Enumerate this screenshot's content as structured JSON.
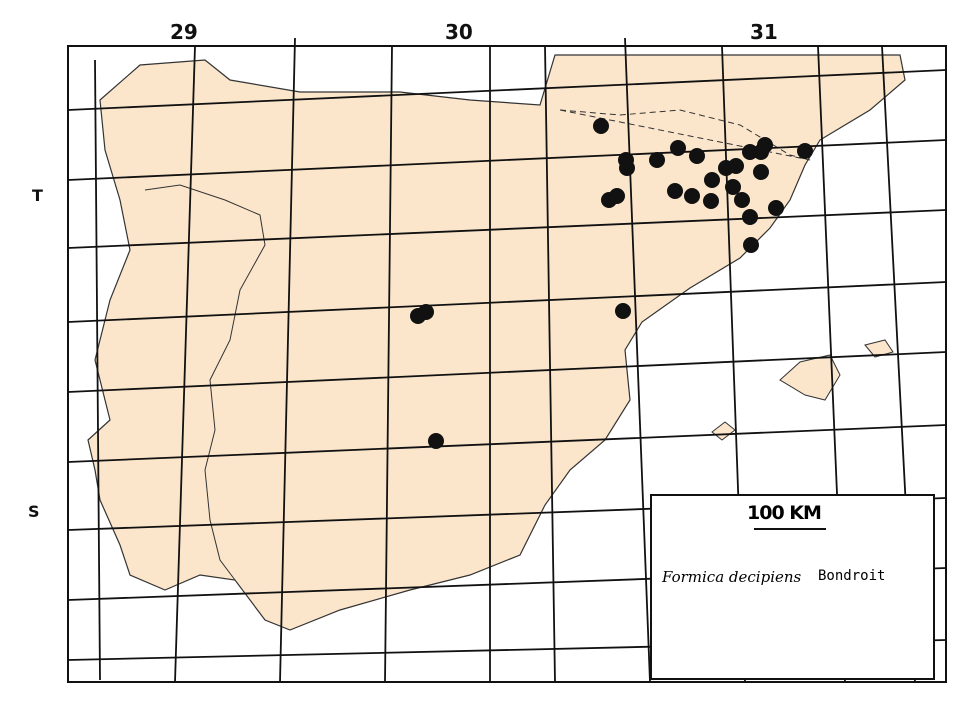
{
  "map": {
    "top_labels": [
      "29",
      "30",
      "31"
    ],
    "side_labels": [
      "T",
      "S"
    ],
    "land_color": "#fbe6cc",
    "sea_color": "#ffffff",
    "grid_color": "#111111",
    "dot_color": "#111111"
  },
  "legend": {
    "scale": "100 KM",
    "species": "Formica decipiens",
    "author": "Bondroit"
  }
}
